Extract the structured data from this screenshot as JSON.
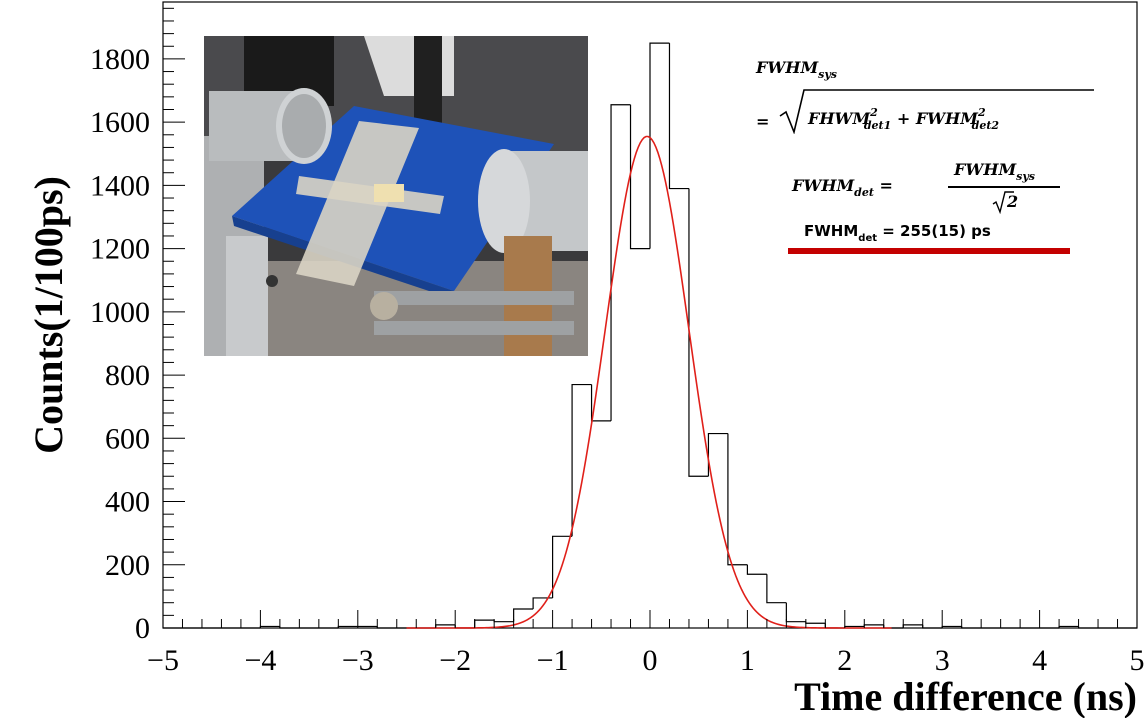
{
  "chart_data": {
    "type": "bar",
    "histogram_bins": [
      {
        "x0": -5.0,
        "x1": -4.8,
        "count": 0
      },
      {
        "x0": -4.8,
        "x1": -4.6,
        "count": 0
      },
      {
        "x0": -4.6,
        "x1": -4.4,
        "count": 0
      },
      {
        "x0": -4.4,
        "x1": -4.2,
        "count": 0
      },
      {
        "x0": -4.2,
        "x1": -4.0,
        "count": 0
      },
      {
        "x0": -4.0,
        "x1": -3.8,
        "count": 5
      },
      {
        "x0": -3.8,
        "x1": -3.6,
        "count": 0
      },
      {
        "x0": -3.6,
        "x1": -3.4,
        "count": 0
      },
      {
        "x0": -3.4,
        "x1": -3.2,
        "count": 0
      },
      {
        "x0": -3.2,
        "x1": -3.0,
        "count": 5
      },
      {
        "x0": -3.0,
        "x1": -2.8,
        "count": 5
      },
      {
        "x0": -2.8,
        "x1": -2.6,
        "count": 0
      },
      {
        "x0": -2.6,
        "x1": -2.4,
        "count": 0
      },
      {
        "x0": -2.4,
        "x1": -2.2,
        "count": 0
      },
      {
        "x0": -2.2,
        "x1": -2.0,
        "count": 10
      },
      {
        "x0": -2.0,
        "x1": -1.8,
        "count": 0
      },
      {
        "x0": -1.8,
        "x1": -1.6,
        "count": 25
      },
      {
        "x0": -1.6,
        "x1": -1.4,
        "count": 20
      },
      {
        "x0": -1.4,
        "x1": -1.2,
        "count": 60
      },
      {
        "x0": -1.2,
        "x1": -1.0,
        "count": 95
      },
      {
        "x0": -1.0,
        "x1": -0.8,
        "count": 290
      },
      {
        "x0": -0.8,
        "x1": -0.6,
        "count": 770
      },
      {
        "x0": -0.6,
        "x1": -0.4,
        "count": 655
      },
      {
        "x0": -0.4,
        "x1": -0.2,
        "count": 1655
      },
      {
        "x0": -0.2,
        "x1": 0.0,
        "count": 1200
      },
      {
        "x0": 0.0,
        "x1": 0.2,
        "count": 1850
      },
      {
        "x0": 0.2,
        "x1": 0.4,
        "count": 1390
      },
      {
        "x0": 0.4,
        "x1": 0.6,
        "count": 480
      },
      {
        "x0": 0.6,
        "x1": 0.8,
        "count": 615
      },
      {
        "x0": 0.8,
        "x1": 1.0,
        "count": 200
      },
      {
        "x0": 1.0,
        "x1": 1.2,
        "count": 170
      },
      {
        "x0": 1.2,
        "x1": 1.4,
        "count": 80
      },
      {
        "x0": 1.4,
        "x1": 1.6,
        "count": 20
      },
      {
        "x0": 1.6,
        "x1": 1.8,
        "count": 15
      },
      {
        "x0": 1.8,
        "x1": 2.0,
        "count": 0
      },
      {
        "x0": 2.0,
        "x1": 2.2,
        "count": 5
      },
      {
        "x0": 2.2,
        "x1": 2.4,
        "count": 10
      },
      {
        "x0": 2.4,
        "x1": 2.6,
        "count": 0
      },
      {
        "x0": 2.6,
        "x1": 2.8,
        "count": 10
      },
      {
        "x0": 2.8,
        "x1": 3.0,
        "count": 0
      },
      {
        "x0": 3.0,
        "x1": 3.2,
        "count": 5
      },
      {
        "x0": 3.2,
        "x1": 3.4,
        "count": 0
      },
      {
        "x0": 3.4,
        "x1": 3.6,
        "count": 0
      },
      {
        "x0": 3.6,
        "x1": 3.8,
        "count": 0
      },
      {
        "x0": 3.8,
        "x1": 4.0,
        "count": 0
      },
      {
        "x0": 4.0,
        "x1": 4.2,
        "count": 0
      },
      {
        "x0": 4.2,
        "x1": 4.4,
        "count": 5
      },
      {
        "x0": 4.4,
        "x1": 4.6,
        "count": 0
      },
      {
        "x0": 4.6,
        "x1": 4.8,
        "count": 0
      },
      {
        "x0": 4.8,
        "x1": 5.0,
        "count": 0
      }
    ],
    "fit": {
      "type": "gaussian",
      "amplitude": 1555,
      "mean": -0.03,
      "sigma": 0.43,
      "color": "#e0201a"
    },
    "xlabel": "Time difference (ns)",
    "ylabel": "Counts(1/100ps)",
    "xlim": [
      -5,
      5
    ],
    "ylim": [
      0,
      1980
    ],
    "x_ticks": [
      -5,
      -4,
      -3,
      -2,
      -1,
      0,
      1,
      2,
      3,
      4,
      5
    ],
    "x_tick_labels": [
      "−5",
      "−4",
      "−3",
      "−2",
      "−1",
      "0",
      "1",
      "2",
      "3",
      "4",
      "5"
    ],
    "y_ticks": [
      0,
      200,
      400,
      600,
      800,
      1000,
      1200,
      1400,
      1600,
      1800
    ],
    "y_tick_labels": [
      "0",
      "200",
      "400",
      "600",
      "800",
      "1000",
      "1200",
      "1400",
      "1600",
      "1800"
    ],
    "grid": false,
    "histogram_color": "#000000",
    "annotations": {
      "formula_sys_lhs": "FWHM",
      "formula_sys_lhs_sub": "sys",
      "formula_equals": "=",
      "formula_term1": "FHWM",
      "formula_term1_sup": "2",
      "formula_term1_sub": "det1",
      "formula_plus": "+",
      "formula_term2": "FWHM",
      "formula_term2_sup": "2",
      "formula_term2_sub": "det2",
      "formula_det_lhs": "FWHM",
      "formula_det_lhs_sub": "det",
      "formula_det_equals": "=",
      "formula_det_num": "FWHM",
      "formula_det_num_sub": "sys",
      "formula_det_den": "2",
      "result_label": "FWHM",
      "result_sub": "det",
      "result_value": " = 255(15) ps",
      "result_underline_color": "#c40000"
    }
  }
}
